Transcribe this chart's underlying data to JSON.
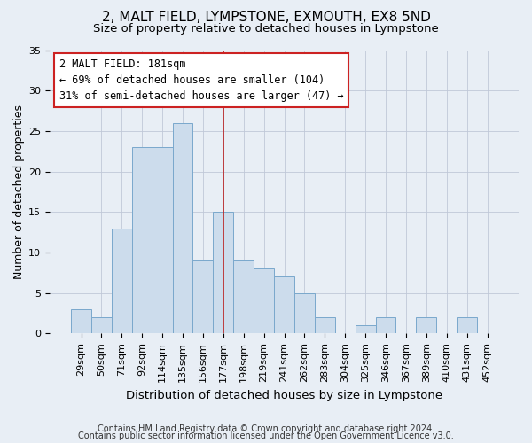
{
  "title": "2, MALT FIELD, LYMPSTONE, EXMOUTH, EX8 5ND",
  "subtitle": "Size of property relative to detached houses in Lympstone",
  "xlabel": "Distribution of detached houses by size in Lympstone",
  "ylabel": "Number of detached properties",
  "bar_labels": [
    "29sqm",
    "50sqm",
    "71sqm",
    "92sqm",
    "114sqm",
    "135sqm",
    "156sqm",
    "177sqm",
    "198sqm",
    "219sqm",
    "241sqm",
    "262sqm",
    "283sqm",
    "304sqm",
    "325sqm",
    "346sqm",
    "367sqm",
    "389sqm",
    "410sqm",
    "431sqm",
    "452sqm"
  ],
  "bar_values": [
    3,
    2,
    13,
    23,
    23,
    26,
    9,
    15,
    9,
    8,
    7,
    5,
    2,
    0,
    1,
    2,
    0,
    2,
    0,
    2,
    0
  ],
  "bar_color": "#ccdcec",
  "bar_edge_color": "#7aa8cc",
  "vline_x_idx": 7,
  "vline_color": "#bb2222",
  "ylim": [
    0,
    35
  ],
  "yticks": [
    0,
    5,
    10,
    15,
    20,
    25,
    30,
    35
  ],
  "annotation_title": "2 MALT FIELD: 181sqm",
  "annotation_line1": "← 69% of detached houses are smaller (104)",
  "annotation_line2": "31% of semi-detached houses are larger (47) →",
  "annotation_box_facecolor": "#ffffff",
  "annotation_box_edgecolor": "#cc2222",
  "footer_line1": "Contains HM Land Registry data © Crown copyright and database right 2024.",
  "footer_line2": "Contains public sector information licensed under the Open Government Licence v3.0.",
  "fig_facecolor": "#e8eef5",
  "plot_facecolor": "#e8eef5",
  "grid_color": "#c0c8d8",
  "title_fontsize": 11,
  "subtitle_fontsize": 9.5,
  "tick_fontsize": 8,
  "ylabel_fontsize": 9,
  "xlabel_fontsize": 9.5,
  "footer_fontsize": 7
}
